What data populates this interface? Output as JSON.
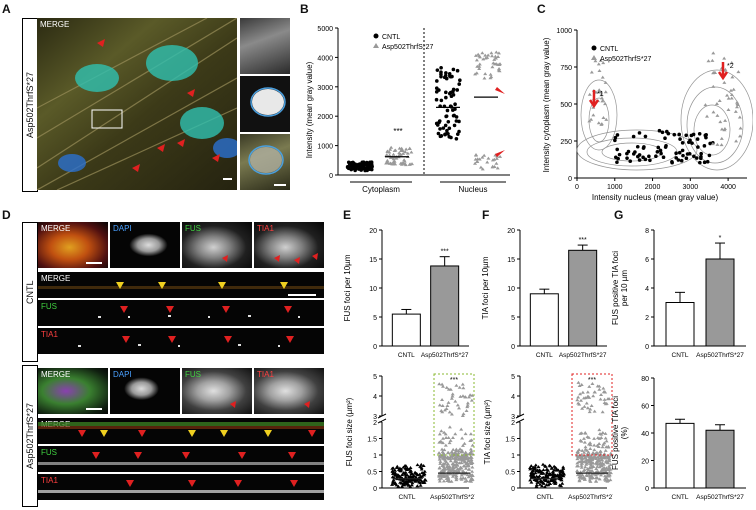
{
  "panels": {
    "a": "A",
    "b": "B",
    "c": "C",
    "d": "D",
    "e": "E",
    "f": "F",
    "g": "G"
  },
  "panel_a": {
    "row_label": "Asp502ThrfS*27",
    "main_label": "MERGE"
  },
  "panel_d": {
    "cntl_label": "CNTL",
    "mut_label": "Asp502ThrfS*27",
    "top_labels": [
      "MERGE",
      "DAPI",
      "FUS",
      "TIA1"
    ],
    "strip_labels": [
      "MERGE",
      "FUS",
      "TIA1"
    ]
  },
  "chart_data": [
    {
      "id": "B",
      "type": "scatter",
      "ylabel": "Intensity (mean gray value)",
      "ylim": [
        0,
        5000
      ],
      "yticks": [
        0,
        1000,
        2000,
        3000,
        4000,
        5000
      ],
      "groups": [
        "Cytoplasm",
        "Nucleus"
      ],
      "legend": [
        "CNTL",
        "Asp502ThrfS*27"
      ],
      "annotation": "***",
      "series": [
        {
          "name": "CNTL",
          "group": "Cytoplasm",
          "median": 280
        },
        {
          "name": "Asp502ThrfS*27",
          "group": "Cytoplasm",
          "median": 620
        },
        {
          "name": "CNTL",
          "group": "Nucleus",
          "median": 2300
        },
        {
          "name": "Asp502ThrfS*27",
          "group": "Nucleus",
          "median": 2650
        }
      ]
    },
    {
      "id": "C",
      "type": "scatter",
      "xlabel": "Intensity nucleus (mean gray value)",
      "ylabel": "Intensity cytoplasm (mean gray value)",
      "xlim": [
        0,
        4500
      ],
      "ylim": [
        0,
        1000
      ],
      "xticks": [
        0,
        1000,
        2000,
        3000,
        4000
      ],
      "yticks": [
        0,
        250,
        500,
        750,
        1000
      ],
      "legend": [
        "CNTL",
        "Asp502ThrfS*27"
      ],
      "annotations": [
        "*1",
        "*2"
      ]
    },
    {
      "id": "E-top",
      "type": "bar",
      "ylabel": "FUS foci per 10µm",
      "categories": [
        "CNTL",
        "Asp502ThrfS*27"
      ],
      "values": [
        5.5,
        13.8
      ],
      "errors": [
        0.8,
        1.6
      ],
      "ylim": [
        0,
        20
      ],
      "yticks": [
        0,
        5,
        10,
        15,
        20
      ],
      "annotation": "***"
    },
    {
      "id": "F-top",
      "type": "bar",
      "ylabel": "TIA foci per 10µm",
      "categories": [
        "CNTL",
        "Asp502ThrfS*27"
      ],
      "values": [
        9,
        16.5
      ],
      "errors": [
        0.8,
        0.9
      ],
      "ylim": [
        0,
        20
      ],
      "yticks": [
        0,
        5,
        10,
        15,
        20
      ],
      "annotation": "***"
    },
    {
      "id": "G-top",
      "type": "bar",
      "ylabel": "FUS positive TIA foci per 10 µm",
      "categories": [
        "CNTL",
        "Asp502ThrfS*27"
      ],
      "values": [
        3,
        6
      ],
      "errors": [
        0.7,
        1.1
      ],
      "ylim": [
        0,
        8
      ],
      "yticks": [
        0,
        2,
        4,
        6,
        8
      ],
      "annotation": "*"
    },
    {
      "id": "E-bottom",
      "type": "scatter",
      "ylabel": "FUS foci size (µm²)",
      "categories": [
        "CNTL",
        "Asp502ThrfS*27"
      ],
      "yticks": [
        0,
        0.5,
        1,
        1.5,
        2,
        3,
        4,
        5
      ],
      "annotation": "***"
    },
    {
      "id": "F-bottom",
      "type": "scatter",
      "ylabel": "TIA foci size (µm²)",
      "categories": [
        "CNTL",
        "Asp502ThrfS*27"
      ],
      "yticks": [
        0,
        0.5,
        1,
        1.5,
        2,
        3,
        4,
        5
      ],
      "annotation": "***"
    },
    {
      "id": "G-bottom",
      "type": "bar",
      "ylabel": "FUS positive TIA foci (%)",
      "categories": [
        "CNTL",
        "Asp502ThrfS*27"
      ],
      "values": [
        47,
        42
      ],
      "errors": [
        3,
        4
      ],
      "ylim": [
        0,
        80
      ],
      "yticks": [
        0,
        20,
        40,
        60,
        80
      ]
    }
  ]
}
